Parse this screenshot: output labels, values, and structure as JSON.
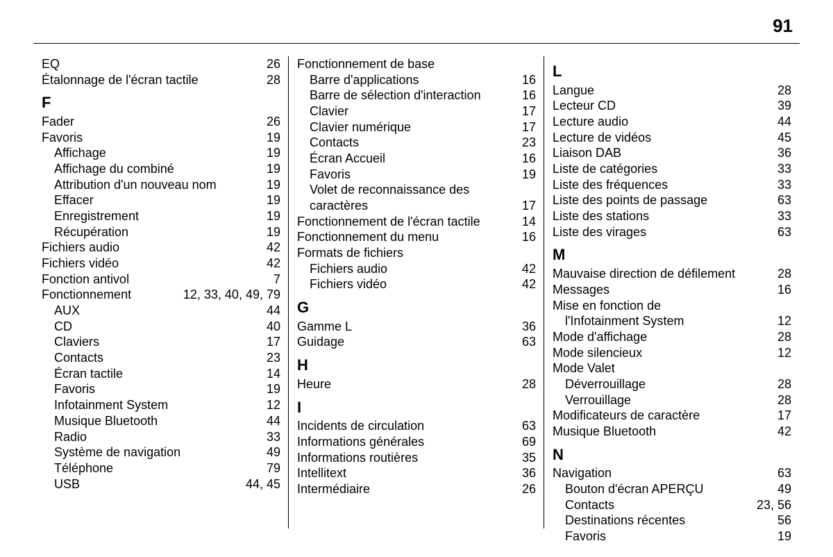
{
  "page_number": "91",
  "columns": [
    {
      "entries": [
        {
          "type": "item",
          "label": "EQ",
          "pages": "26"
        },
        {
          "type": "item",
          "label": "Étalonnage de l'écran tactile",
          "pages": "28"
        },
        {
          "type": "letter",
          "label": "F"
        },
        {
          "type": "item",
          "label": "Fader",
          "pages": "26"
        },
        {
          "type": "item",
          "label": "Favoris",
          "pages": "19"
        },
        {
          "type": "item",
          "indent": 1,
          "label": "Affichage",
          "pages": "19"
        },
        {
          "type": "item",
          "indent": 1,
          "label": "Affichage du combiné",
          "pages": "19"
        },
        {
          "type": "item",
          "indent": 1,
          "label": "Attribution d'un nouveau nom",
          "lead": false,
          "pages": "19"
        },
        {
          "type": "item",
          "indent": 1,
          "label": "Effacer",
          "pages": "19"
        },
        {
          "type": "item",
          "indent": 1,
          "label": "Enregistrement",
          "pages": "19"
        },
        {
          "type": "item",
          "indent": 1,
          "label": "Récupération",
          "pages": "19"
        },
        {
          "type": "item",
          "label": "Fichiers audio",
          "pages": "42"
        },
        {
          "type": "item",
          "label": "Fichiers vidéo",
          "pages": "42"
        },
        {
          "type": "item",
          "label": "Fonction antivol ",
          "pages": "7"
        },
        {
          "type": "item",
          "label": "Fonctionnement",
          "lead": false,
          "pages": " 12, 33, 40, 49, 79"
        },
        {
          "type": "item",
          "indent": 1,
          "label": "AUX",
          "pages": "44"
        },
        {
          "type": "item",
          "indent": 1,
          "label": "CD",
          "pages": "40"
        },
        {
          "type": "item",
          "indent": 1,
          "label": "Claviers",
          "pages": "17"
        },
        {
          "type": "item",
          "indent": 1,
          "label": "Contacts",
          "pages": "23"
        },
        {
          "type": "item",
          "indent": 1,
          "label": "Écran tactile",
          "pages": "14"
        },
        {
          "type": "item",
          "indent": 1,
          "label": "Favoris",
          "pages": "19"
        },
        {
          "type": "item",
          "indent": 1,
          "label": "Infotainment System",
          "pages": "12"
        },
        {
          "type": "item",
          "indent": 1,
          "label": "Musique Bluetooth",
          "pages": "44"
        },
        {
          "type": "item",
          "indent": 1,
          "label": "Radio",
          "pages": "33"
        },
        {
          "type": "item",
          "indent": 1,
          "label": "Système de navigation",
          "pages": "49"
        },
        {
          "type": "item",
          "indent": 1,
          "label": "Téléphone",
          "pages": "79"
        },
        {
          "type": "item",
          "indent": 1,
          "label": "USB",
          "pages": "44, 45"
        }
      ]
    },
    {
      "entries": [
        {
          "type": "header",
          "label": "Fonctionnement de base"
        },
        {
          "type": "item",
          "indent": 1,
          "label": "Barre d'applications",
          "pages": "16"
        },
        {
          "type": "item",
          "indent": 1,
          "label": "Barre de sélection d'interaction",
          "lead": false,
          "pages": "16"
        },
        {
          "type": "item",
          "indent": 1,
          "label": "Clavier",
          "pages": "17"
        },
        {
          "type": "item",
          "indent": 1,
          "label": "Clavier numérique",
          "pages": "17"
        },
        {
          "type": "item",
          "indent": 1,
          "label": "Contacts",
          "pages": "23"
        },
        {
          "type": "item",
          "indent": 1,
          "label": "Écran Accueil",
          "pages": "16"
        },
        {
          "type": "item",
          "indent": 1,
          "label": "Favoris",
          "pages": "19"
        },
        {
          "type": "header",
          "indent": 1,
          "label": "Volet de reconnaissance des"
        },
        {
          "type": "item",
          "indent": 1,
          "label": "caractères",
          "pages": "17"
        },
        {
          "type": "item",
          "label": "Fonctionnement de l'écran tactile",
          "lead": false,
          "pages": "14"
        },
        {
          "type": "item",
          "label": "Fonctionnement du menu",
          "pages": "16"
        },
        {
          "type": "header",
          "label": "Formats de fichiers"
        },
        {
          "type": "item",
          "indent": 1,
          "label": "Fichiers audio",
          "pages": "42"
        },
        {
          "type": "item",
          "indent": 1,
          "label": "Fichiers vidéo",
          "pages": "42"
        },
        {
          "type": "letter",
          "label": "G"
        },
        {
          "type": "item",
          "label": "Gamme L",
          "pages": "36"
        },
        {
          "type": "item",
          "label": "Guidage ",
          "pages": "63"
        },
        {
          "type": "letter",
          "label": "H"
        },
        {
          "type": "item",
          "label": "Heure",
          "pages": "28"
        },
        {
          "type": "letter",
          "label": "I"
        },
        {
          "type": "item",
          "label": "Incidents de circulation",
          "pages": "63"
        },
        {
          "type": "item",
          "label": "Informations générales",
          "pages": "69"
        },
        {
          "type": "item",
          "label": "Informations routières",
          "pages": "35"
        },
        {
          "type": "item",
          "label": "Intellitext",
          "pages": "36"
        },
        {
          "type": "item",
          "label": "Intermédiaire",
          "pages": "26"
        }
      ]
    },
    {
      "entries": [
        {
          "type": "letter",
          "label": "L"
        },
        {
          "type": "item",
          "label": "Langue",
          "pages": "28"
        },
        {
          "type": "item",
          "label": "Lecteur CD",
          "pages": "39"
        },
        {
          "type": "item",
          "label": "Lecture audio",
          "pages": "44"
        },
        {
          "type": "item",
          "label": "Lecture de vidéos",
          "pages": "45"
        },
        {
          "type": "item",
          "label": "Liaison DAB",
          "pages": "36"
        },
        {
          "type": "item",
          "label": "Liste de catégories",
          "pages": "33"
        },
        {
          "type": "item",
          "label": "Liste des fréquences",
          "pages": "33"
        },
        {
          "type": "item",
          "label": "Liste des points de passage",
          "pages": "63"
        },
        {
          "type": "item",
          "label": "Liste des stations",
          "pages": "33"
        },
        {
          "type": "item",
          "label": "Liste des virages",
          "pages": "63"
        },
        {
          "type": "letter",
          "label": "M"
        },
        {
          "type": "item",
          "label": "Mauvaise direction de défilement",
          "lead": false,
          "pages": "28"
        },
        {
          "type": "item",
          "label": "Messages",
          "pages": "16"
        },
        {
          "type": "header",
          "label": "Mise en fonction de"
        },
        {
          "type": "item",
          "indent": 1,
          "label": "l'Infotainment System",
          "pages": "12"
        },
        {
          "type": "item",
          "label": "Mode d'affichage",
          "pages": "28"
        },
        {
          "type": "item",
          "label": "Mode silencieux",
          "pages": "12"
        },
        {
          "type": "header",
          "label": "Mode Valet"
        },
        {
          "type": "item",
          "indent": 1,
          "label": "Déverrouillage",
          "pages": "28"
        },
        {
          "type": "item",
          "indent": 1,
          "label": "Verrouillage",
          "pages": "28"
        },
        {
          "type": "item",
          "label": "Modificateurs de caractère",
          "pages": "17"
        },
        {
          "type": "item",
          "label": "Musique Bluetooth",
          "pages": "42"
        },
        {
          "type": "letter",
          "label": "N"
        },
        {
          "type": "item",
          "label": "Navigation",
          "pages": "63"
        },
        {
          "type": "item",
          "indent": 1,
          "label": "Bouton d'écran APERÇU",
          "pages": "49"
        },
        {
          "type": "item",
          "indent": 1,
          "label": "Contacts",
          "pages": "23, 56"
        },
        {
          "type": "item",
          "indent": 1,
          "label": "Destinations récentes",
          "pages": "56"
        },
        {
          "type": "item",
          "indent": 1,
          "label": "Favoris",
          "pages": "19"
        }
      ]
    }
  ]
}
